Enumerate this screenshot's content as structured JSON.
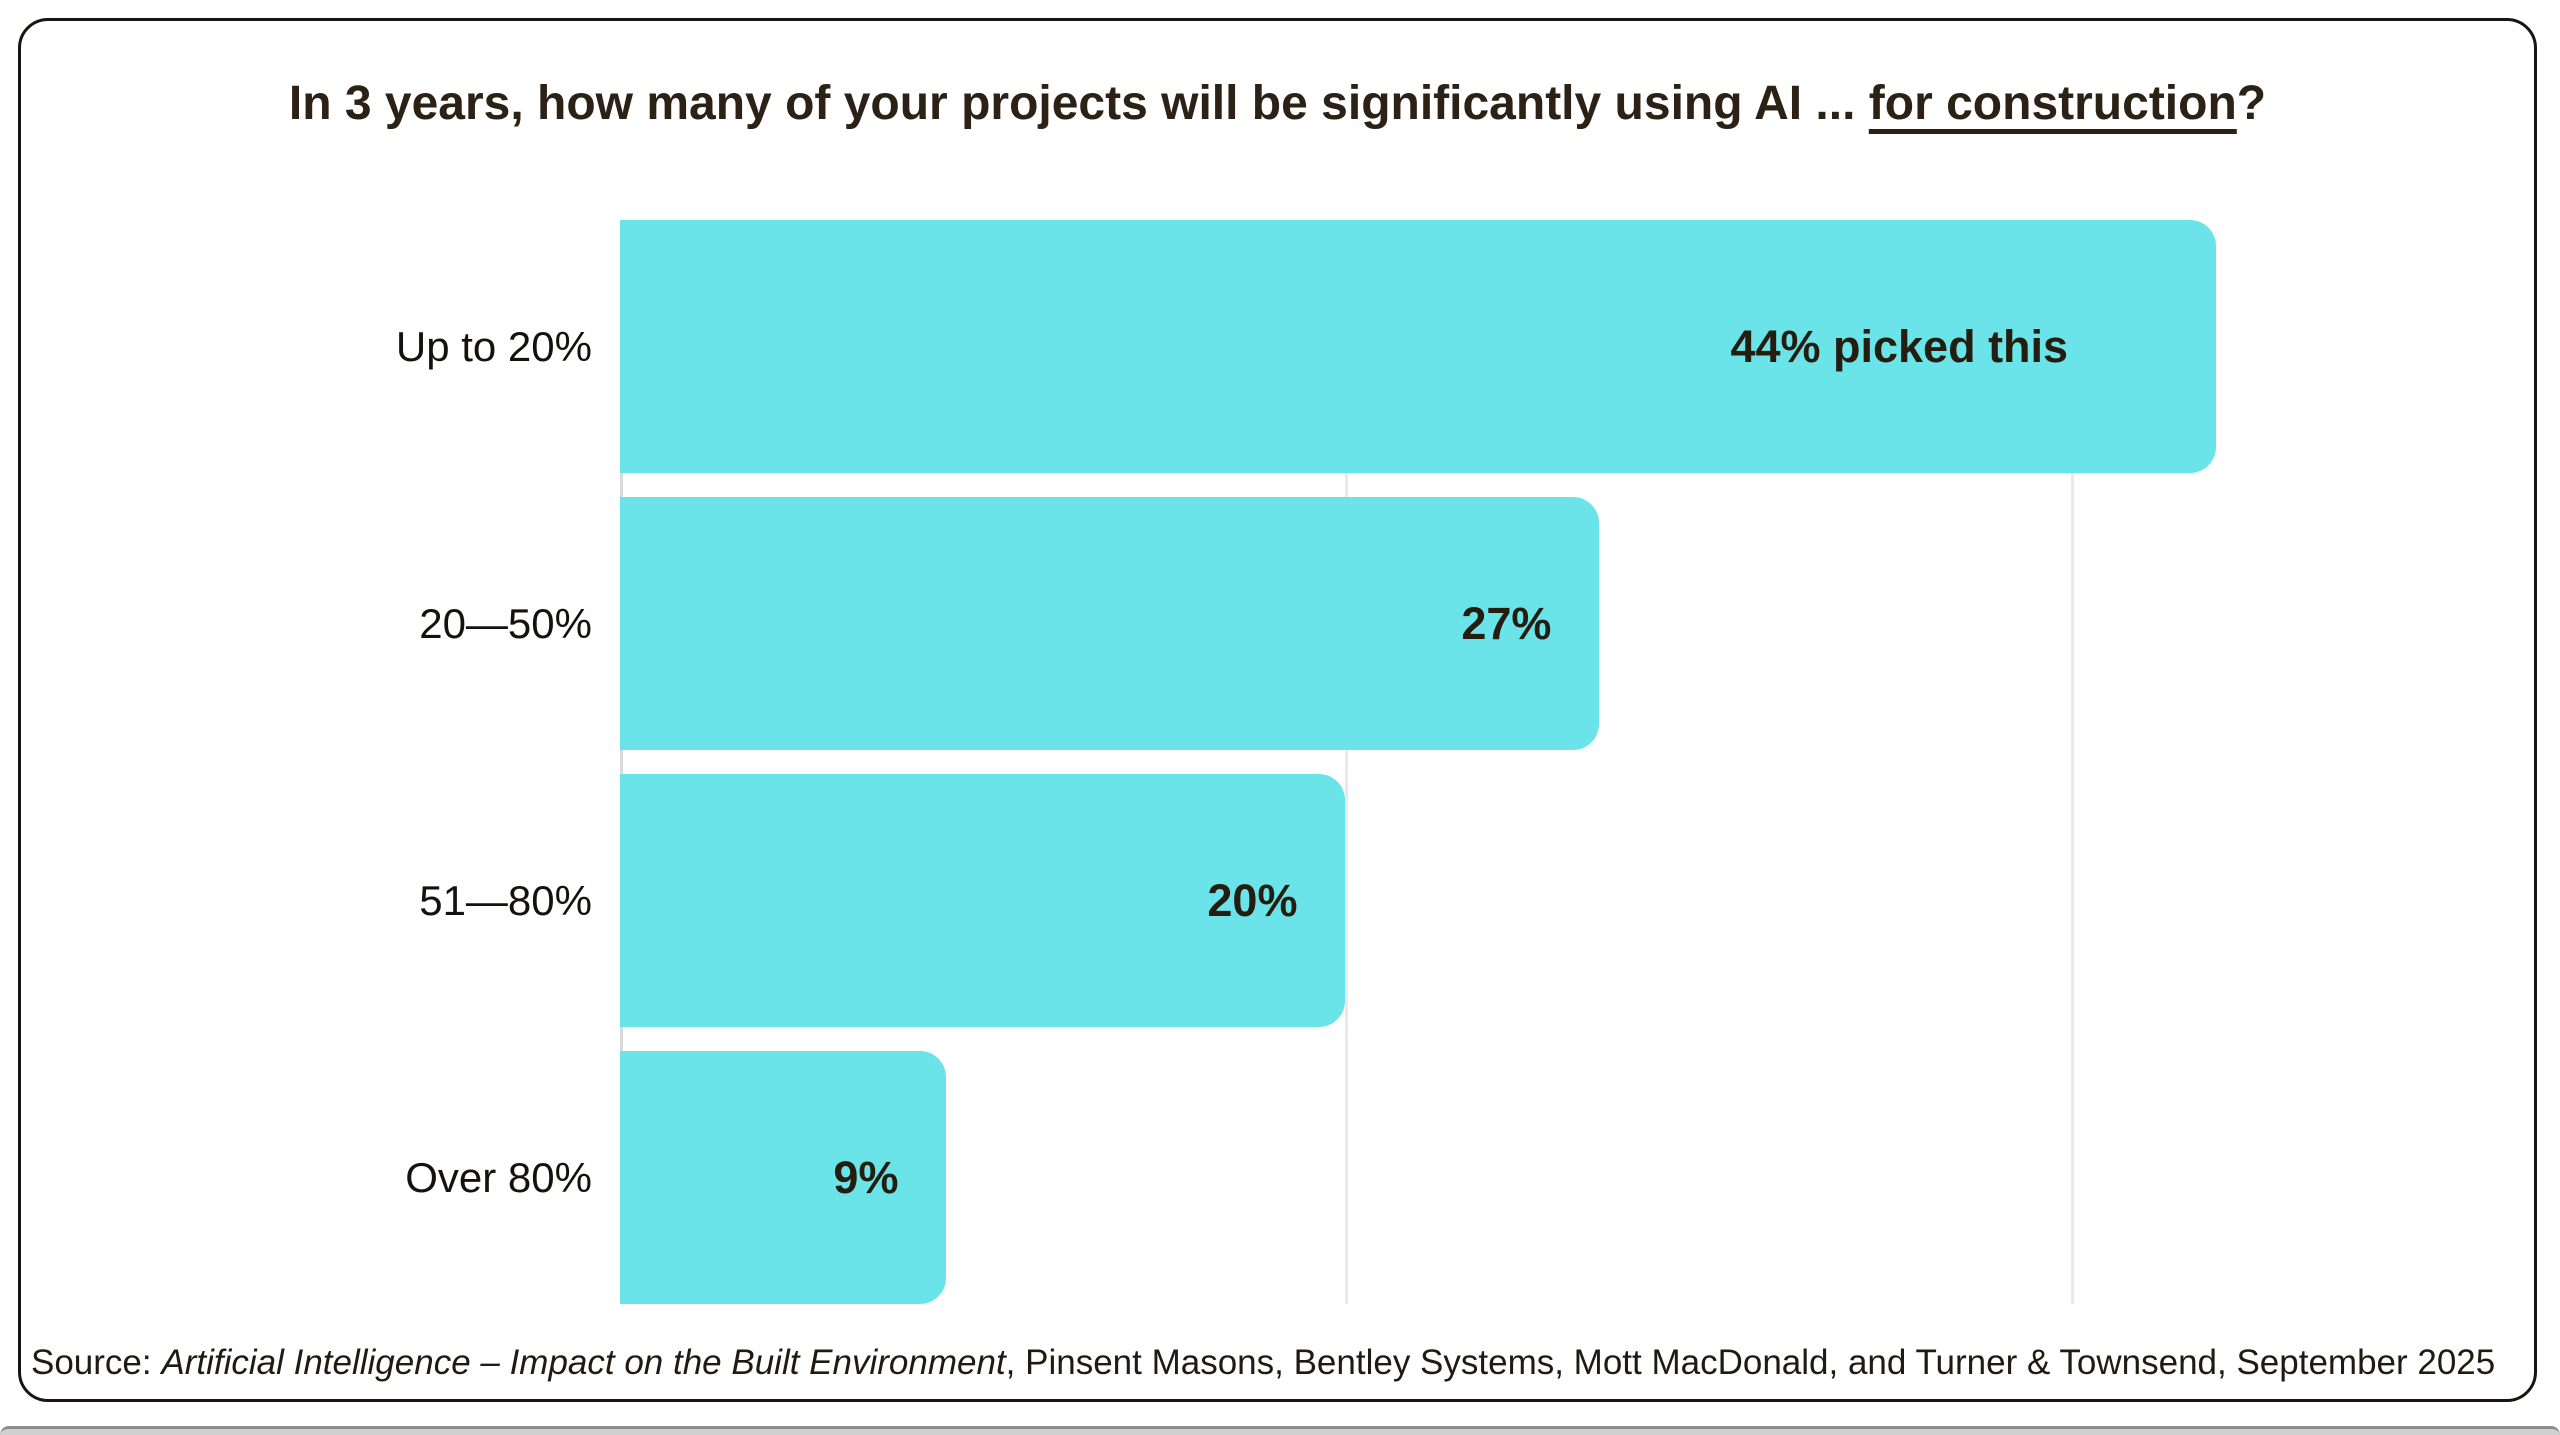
{
  "title": {
    "prefix": "In 3 years, how many of your projects will be significantly using AI ... ",
    "underlined": "for construction",
    "suffix": "?"
  },
  "chart_data": {
    "type": "bar",
    "orientation": "horizontal",
    "title": "In 3 years, how many of your projects will be significantly using AI ... for construction?",
    "categories": [
      "Up to 20%",
      "20—50%",
      "51—80%",
      "Over 80%"
    ],
    "values": [
      44,
      27,
      20,
      9
    ],
    "value_labels": [
      "44% picked this",
      "27%",
      "20%",
      "9%"
    ],
    "xlabel": "",
    "ylabel": "",
    "xlim": [
      0,
      51
    ],
    "gridlines_at": [
      0,
      20,
      40
    ],
    "grid": true,
    "legend": false,
    "bar_color": "#6ae4e8"
  },
  "source": {
    "prefix": "Source: ",
    "italic": "Artificial Intelligence – Impact on the Built Environment",
    "suffix": ", Pinsent Masons, Bentley Systems, Mott MacDonald, and Turner & Townsend, September 2025"
  },
  "colors": {
    "bar": "#6ae4e8",
    "title_text": "#2b2114",
    "label_text": "#16120b",
    "value_text": "#241d10",
    "card_border": "#19140e",
    "gridline": "#e9e9e9",
    "axis_line": "#dadada",
    "bottom_strip_border": "#8d8d8d",
    "bottom_strip_fill": "#d0d0d0"
  }
}
